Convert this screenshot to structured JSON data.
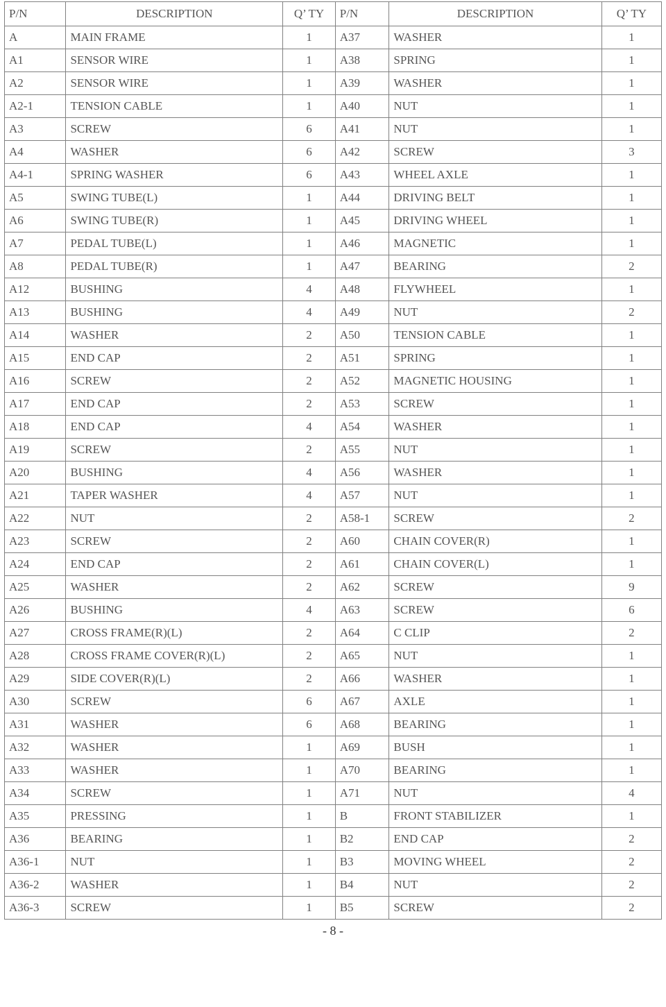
{
  "table": {
    "headers": {
      "pn": "P/N",
      "desc": "DESCRIPTION",
      "qty": "Q’ TY"
    },
    "rows": [
      {
        "l_pn": "A",
        "l_desc": "MAIN FRAME",
        "l_qty": "1",
        "r_pn": "A37",
        "r_desc": "WASHER",
        "r_qty": "1"
      },
      {
        "l_pn": "A1",
        "l_desc": "SENSOR WIRE",
        "l_qty": "1",
        "r_pn": "A38",
        "r_desc": "SPRING",
        "r_qty": "1"
      },
      {
        "l_pn": "A2",
        "l_desc": "SENSOR WIRE",
        "l_qty": "1",
        "r_pn": "A39",
        "r_desc": "WASHER",
        "r_qty": "1"
      },
      {
        "l_pn": "A2-1",
        "l_desc": "TENSION CABLE",
        "l_qty": "1",
        "r_pn": "A40",
        "r_desc": "NUT",
        "r_qty": "1"
      },
      {
        "l_pn": "A3",
        "l_desc": "SCREW",
        "l_qty": "6",
        "r_pn": "A41",
        "r_desc": "NUT",
        "r_qty": "1"
      },
      {
        "l_pn": "A4",
        "l_desc": "WASHER",
        "l_qty": "6",
        "r_pn": "A42",
        "r_desc": "SCREW",
        "r_qty": "3"
      },
      {
        "l_pn": "A4-1",
        "l_desc": "SPRING WASHER",
        "l_qty": "6",
        "r_pn": "A43",
        "r_desc": "WHEEL AXLE",
        "r_qty": "1"
      },
      {
        "l_pn": "A5",
        "l_desc": "SWING TUBE(L)",
        "l_qty": "1",
        "r_pn": "A44",
        "r_desc": "DRIVING BELT",
        "r_qty": "1"
      },
      {
        "l_pn": "A6",
        "l_desc": "SWING TUBE(R)",
        "l_qty": "1",
        "r_pn": "A45",
        "r_desc": "DRIVING WHEEL",
        "r_qty": "1"
      },
      {
        "l_pn": "A7",
        "l_desc": "PEDAL TUBE(L)",
        "l_qty": "1",
        "r_pn": "A46",
        "r_desc": "MAGNETIC",
        "r_qty": "1"
      },
      {
        "l_pn": "A8",
        "l_desc": "PEDAL TUBE(R)",
        "l_qty": "1",
        "r_pn": "A47",
        "r_desc": "BEARING",
        "r_qty": "2"
      },
      {
        "l_pn": "A12",
        "l_desc": "BUSHING",
        "l_qty": "4",
        "r_pn": "A48",
        "r_desc": "FLYWHEEL",
        "r_qty": "1"
      },
      {
        "l_pn": "A13",
        "l_desc": "BUSHING",
        "l_qty": "4",
        "r_pn": "A49",
        "r_desc": "NUT",
        "r_qty": "2"
      },
      {
        "l_pn": "A14",
        "l_desc": "WASHER",
        "l_qty": "2",
        "r_pn": "A50",
        "r_desc": "TENSION CABLE",
        "r_qty": "1"
      },
      {
        "l_pn": "A15",
        "l_desc": "END CAP",
        "l_qty": "2",
        "r_pn": "A51",
        "r_desc": "SPRING",
        "r_qty": "1"
      },
      {
        "l_pn": "A16",
        "l_desc": "SCREW",
        "l_qty": "2",
        "r_pn": "A52",
        "r_desc": "MAGNETIC HOUSING",
        "r_qty": "1"
      },
      {
        "l_pn": "A17",
        "l_desc": "END CAP",
        "l_qty": "2",
        "r_pn": "A53",
        "r_desc": "SCREW",
        "r_qty": "1"
      },
      {
        "l_pn": "A18",
        "l_desc": "END CAP",
        "l_qty": "4",
        "r_pn": "A54",
        "r_desc": "WASHER",
        "r_qty": "1"
      },
      {
        "l_pn": "A19",
        "l_desc": "SCREW",
        "l_qty": "2",
        "r_pn": "A55",
        "r_desc": "NUT",
        "r_qty": "1"
      },
      {
        "l_pn": "A20",
        "l_desc": "BUSHING",
        "l_qty": "4",
        "r_pn": "A56",
        "r_desc": "WASHER",
        "r_qty": "1"
      },
      {
        "l_pn": "A21",
        "l_desc": "TAPER WASHER",
        "l_qty": "4",
        "r_pn": "A57",
        "r_desc": "NUT",
        "r_qty": "1"
      },
      {
        "l_pn": "A22",
        "l_desc": "NUT",
        "l_qty": "2",
        "r_pn": "A58-1",
        "r_desc": "SCREW",
        "r_qty": "2"
      },
      {
        "l_pn": "A23",
        "l_desc": "SCREW",
        "l_qty": "2",
        "r_pn": "A60",
        "r_desc": "CHAIN COVER(R)",
        "r_qty": "1"
      },
      {
        "l_pn": "A24",
        "l_desc": "END CAP",
        "l_qty": "2",
        "r_pn": "A61",
        "r_desc": "CHAIN COVER(L)",
        "r_qty": "1"
      },
      {
        "l_pn": "A25",
        "l_desc": "WASHER",
        "l_qty": "2",
        "r_pn": "A62",
        "r_desc": "SCREW",
        "r_qty": "9"
      },
      {
        "l_pn": "A26",
        "l_desc": "BUSHING",
        "l_qty": "4",
        "r_pn": "A63",
        "r_desc": "SCREW",
        "r_qty": "6"
      },
      {
        "l_pn": "A27",
        "l_desc": "CROSS FRAME(R)(L)",
        "l_qty": "2",
        "r_pn": "A64",
        "r_desc": "C CLIP",
        "r_qty": "2"
      },
      {
        "l_pn": "A28",
        "l_desc": "CROSS FRAME COVER(R)(L)",
        "l_qty": "2",
        "r_pn": "A65",
        "r_desc": "NUT",
        "r_qty": "1"
      },
      {
        "l_pn": "A29",
        "l_desc": "SIDE COVER(R)(L)",
        "l_qty": "2",
        "r_pn": "A66",
        "r_desc": "WASHER",
        "r_qty": "1"
      },
      {
        "l_pn": "A30",
        "l_desc": "SCREW",
        "l_qty": "6",
        "r_pn": "A67",
        "r_desc": "AXLE",
        "r_qty": "1"
      },
      {
        "l_pn": "A31",
        "l_desc": "WASHER",
        "l_qty": "6",
        "r_pn": "A68",
        "r_desc": "BEARING",
        "r_qty": "1"
      },
      {
        "l_pn": "A32",
        "l_desc": "WASHER",
        "l_qty": "1",
        "r_pn": "A69",
        "r_desc": "BUSH",
        "r_qty": "1"
      },
      {
        "l_pn": "A33",
        "l_desc": "WASHER",
        "l_qty": "1",
        "r_pn": "A70",
        "r_desc": "BEARING",
        "r_qty": "1"
      },
      {
        "l_pn": "A34",
        "l_desc": "SCREW",
        "l_qty": "1",
        "r_pn": "A71",
        "r_desc": "NUT",
        "r_qty": "4"
      },
      {
        "l_pn": "A35",
        "l_desc": "PRESSING",
        "l_qty": "1",
        "r_pn": "B",
        "r_desc": "FRONT STABILIZER",
        "r_qty": "1"
      },
      {
        "l_pn": "A36",
        "l_desc": "BEARING",
        "l_qty": "1",
        "r_pn": "B2",
        "r_desc": "END CAP",
        "r_qty": "2"
      },
      {
        "l_pn": "A36-1",
        "l_desc": "NUT",
        "l_qty": "1",
        "r_pn": "B3",
        "r_desc": "MOVING WHEEL",
        "r_qty": "2"
      },
      {
        "l_pn": "A36-2",
        "l_desc": "WASHER",
        "l_qty": "1",
        "r_pn": "B4",
        "r_desc": "NUT",
        "r_qty": "2"
      },
      {
        "l_pn": "A36-3",
        "l_desc": "SCREW",
        "l_qty": "1",
        "r_pn": "B5",
        "r_desc": "SCREW",
        "r_qty": "2"
      }
    ]
  },
  "footer": {
    "page_label": "- 8 -"
  }
}
